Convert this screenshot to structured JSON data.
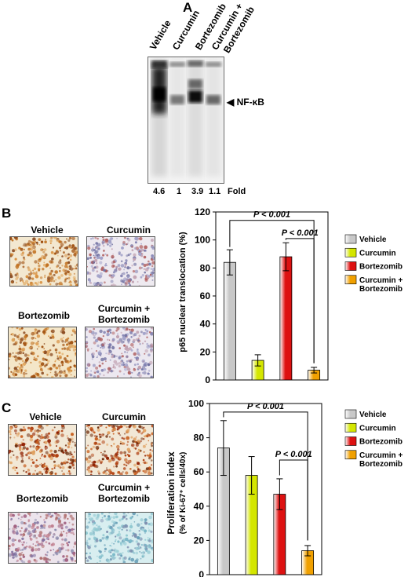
{
  "panel_a": {
    "letter": "A",
    "lanes": [
      "Vehicle",
      "Curcumin",
      "Bortezomib",
      "Curcumin +",
      "Bortezomib"
    ],
    "band_label": "NF-κB",
    "fold_values": [
      "4.6",
      "1",
      "3.9",
      "1.1"
    ],
    "fold_label": "Fold"
  },
  "panel_b": {
    "letter": "B",
    "images": [
      "Vehicle",
      "Curcumin",
      "Bortezomib",
      "Curcumin +",
      "Bortezomib"
    ]
  },
  "panel_c": {
    "letter": "C",
    "images": [
      "Vehicle",
      "Curcumin",
      "Bortezomib",
      "Curcumin +",
      "Bortezomib"
    ]
  },
  "colors": {
    "vehicle": "#c8c8c8",
    "curcumin": "#d4e600",
    "bortezomib": "#dd1111",
    "combo": "#f0a000"
  },
  "chart_data": [
    {
      "type": "bar",
      "categories": [
        "Vehicle",
        "Curcumin",
        "Bortezomib",
        "Curcumin + Bortezomib"
      ],
      "values": [
        84,
        14,
        88,
        7
      ],
      "errors": [
        9,
        4,
        10,
        2
      ],
      "ylabel": "p65 nuclear translocation (%)",
      "ylim": [
        0,
        120
      ],
      "yticks": [
        0,
        20,
        40,
        60,
        80,
        100,
        120
      ],
      "annotations": [
        "P < 0.001",
        "P < 0.001"
      ],
      "legend": [
        "Vehicle",
        "Curcumin",
        "Bortezomib",
        "Curcumin +",
        "Bortezomib"
      ]
    },
    {
      "type": "bar",
      "categories": [
        "Vehicle",
        "Curcumin",
        "Bortezomib",
        "Curcumin + Bortezomib"
      ],
      "values": [
        74,
        58,
        47,
        14
      ],
      "errors": [
        16,
        11,
        9,
        3
      ],
      "ylabel": "Proliferation index",
      "ylabel2": "(% of Ki-67⁺ cells/40x)",
      "ylim": [
        0,
        100
      ],
      "yticks": [
        0,
        20,
        40,
        60,
        80,
        100
      ],
      "annotations": [
        "P < 0.001",
        "P < 0.001"
      ],
      "legend": [
        "Vehicle",
        "Curcumin",
        "Bortezomib",
        "Curcumin +",
        "Bortezomib"
      ]
    }
  ]
}
